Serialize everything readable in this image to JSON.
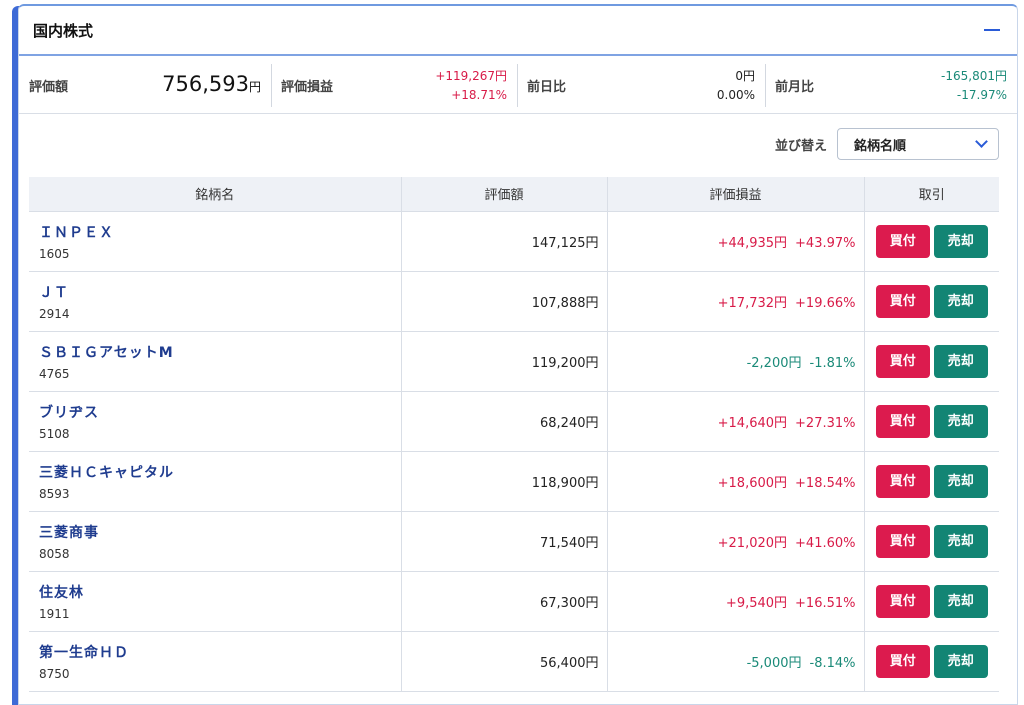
{
  "panel": {
    "title": "国内株式"
  },
  "summary": {
    "valuation_label": "評価額",
    "valuation_value": "756,593",
    "valuation_unit": "円",
    "pl_label": "評価損益",
    "pl_amount": "+119,267円",
    "pl_percent": "+18.71%",
    "day_label": "前日比",
    "day_amount": "0円",
    "day_percent": "0.00%",
    "month_label": "前月比",
    "month_amount": "-165,801円",
    "month_percent": "-17.97%"
  },
  "sort": {
    "label": "並び替え",
    "selected": "銘柄名順"
  },
  "table": {
    "headers": {
      "name": "銘柄名",
      "value": "評価額",
      "pl": "評価損益",
      "trade": "取引"
    },
    "buy_label": "買付",
    "sell_label": "売却",
    "rows": [
      {
        "name": "ＩＮＰＥＸ",
        "code": "1605",
        "value": "147,125円",
        "pl_amount": "+44,935円",
        "pl_percent": "+43.97%",
        "sign": "pos"
      },
      {
        "name": "ＪＴ",
        "code": "2914",
        "value": "107,888円",
        "pl_amount": "+17,732円",
        "pl_percent": "+19.66%",
        "sign": "pos"
      },
      {
        "name": "ＳＢＩＧアセットM",
        "code": "4765",
        "value": "119,200円",
        "pl_amount": "-2,200円",
        "pl_percent": "-1.81%",
        "sign": "neg"
      },
      {
        "name": "ブリヂス",
        "code": "5108",
        "value": "68,240円",
        "pl_amount": "+14,640円",
        "pl_percent": "+27.31%",
        "sign": "pos"
      },
      {
        "name": "三菱ＨＣキャピタル",
        "code": "8593",
        "value": "118,900円",
        "pl_amount": "+18,600円",
        "pl_percent": "+18.54%",
        "sign": "pos"
      },
      {
        "name": "三菱商事",
        "code": "8058",
        "value": "71,540円",
        "pl_amount": "+21,020円",
        "pl_percent": "+41.60%",
        "sign": "pos"
      },
      {
        "name": "住友林",
        "code": "1911",
        "value": "67,300円",
        "pl_amount": "+9,540円",
        "pl_percent": "+16.51%",
        "sign": "pos"
      },
      {
        "name": "第一生命ＨＤ",
        "code": "8750",
        "value": "56,400円",
        "pl_amount": "-5,000円",
        "pl_percent": "-8.14%",
        "sign": "neg"
      }
    ]
  },
  "colors": {
    "accent": "#3d6ad6",
    "positive": "#d81b48",
    "negative": "#1a8a78",
    "buy_button": "#dc1b4e",
    "sell_button": "#128574"
  },
  "icons": {
    "collapse": "minus-icon",
    "sort_dropdown": "chevron-down-icon"
  }
}
